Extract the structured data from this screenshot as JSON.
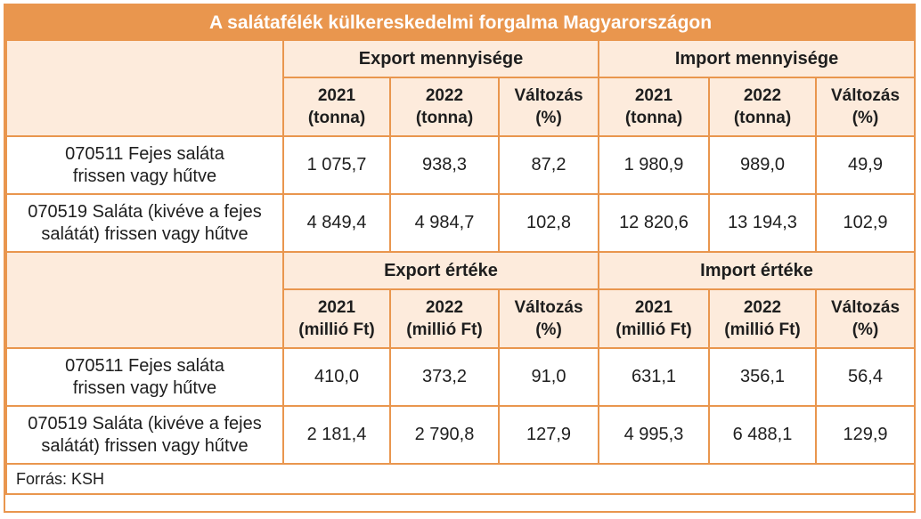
{
  "title": "A salátafélék külkereskedelmi forgalma Magyarországon",
  "sections": [
    {
      "groups": [
        "Export mennyisége",
        "Import mennyisége"
      ],
      "columns": [
        [
          "2021",
          "(tonna)"
        ],
        [
          "2022",
          "(tonna)"
        ],
        [
          "Változás",
          "(%)"
        ],
        [
          "2021",
          "(tonna)"
        ],
        [
          "2022",
          "(tonna)"
        ],
        [
          "Változás",
          "(%)"
        ]
      ],
      "rows": [
        {
          "label": [
            "070511 Fejes saláta",
            "frissen vagy hűtve"
          ],
          "values": [
            "1 075,7",
            "938,3",
            "87,2",
            "1 980,9",
            "989,0",
            "49,9"
          ]
        },
        {
          "label": [
            "070519 Saláta (kivéve a fejes",
            "salátát) frissen vagy hűtve"
          ],
          "values": [
            "4 849,4",
            "4 984,7",
            "102,8",
            "12 820,6",
            "13 194,3",
            "102,9"
          ]
        }
      ]
    },
    {
      "groups": [
        "Export értéke",
        "Import értéke"
      ],
      "columns": [
        [
          "2021",
          "(millió Ft)"
        ],
        [
          "2022",
          "(millió Ft)"
        ],
        [
          "Változás",
          "(%)"
        ],
        [
          "2021",
          "(millió Ft)"
        ],
        [
          "2022",
          "(millió Ft)"
        ],
        [
          "Változás",
          "(%)"
        ]
      ],
      "rows": [
        {
          "label": [
            "070511 Fejes saláta",
            "frissen vagy hűtve"
          ],
          "values": [
            "410,0",
            "373,2",
            "91,0",
            "631,1",
            "356,1",
            "56,4"
          ]
        },
        {
          "label": [
            "070519 Saláta (kivéve a fejes",
            "salátát) frissen vagy hűtve"
          ],
          "values": [
            "2 181,4",
            "2 790,8",
            "127,9",
            "4 995,3",
            "6 488,1",
            "129,9"
          ]
        }
      ]
    }
  ],
  "source": "Forrás: KSH",
  "colors": {
    "accent": "#e9964e",
    "header_fill": "#fdebdc"
  }
}
